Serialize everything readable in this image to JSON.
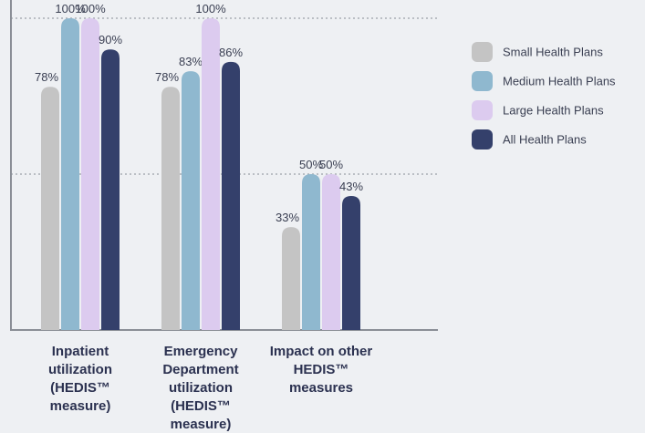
{
  "chart_data": {
    "type": "bar",
    "categories": [
      "Inpatient utilization (HEDIS™ measure)",
      "Emergency Department utilization (HEDIS™ measure)",
      "Impact on other HEDIS™ measures"
    ],
    "series": [
      {
        "name": "Small Health Plans",
        "color": "#c4c4c4",
        "values": [
          78,
          78,
          33
        ],
        "value_labels": [
          "78%",
          "78%",
          "33%"
        ]
      },
      {
        "name": "Medium Health Plans",
        "color": "#8fb8cf",
        "values": [
          100,
          83,
          50
        ],
        "value_labels": [
          "100%",
          "83%",
          "50%"
        ]
      },
      {
        "name": "Large Health Plans",
        "color": "#dccbef",
        "values": [
          100,
          100,
          50
        ],
        "value_labels": [
          "100%",
          "100%",
          "50%"
        ]
      },
      {
        "name": "All Health Plans",
        "color": "#34406b",
        "values": [
          90,
          86,
          43
        ],
        "value_labels": [
          "90%",
          "86%",
          "43%"
        ]
      }
    ],
    "ylim": [
      0,
      100
    ],
    "yticks": [
      50,
      100
    ],
    "grid": true,
    "legend": "right"
  }
}
